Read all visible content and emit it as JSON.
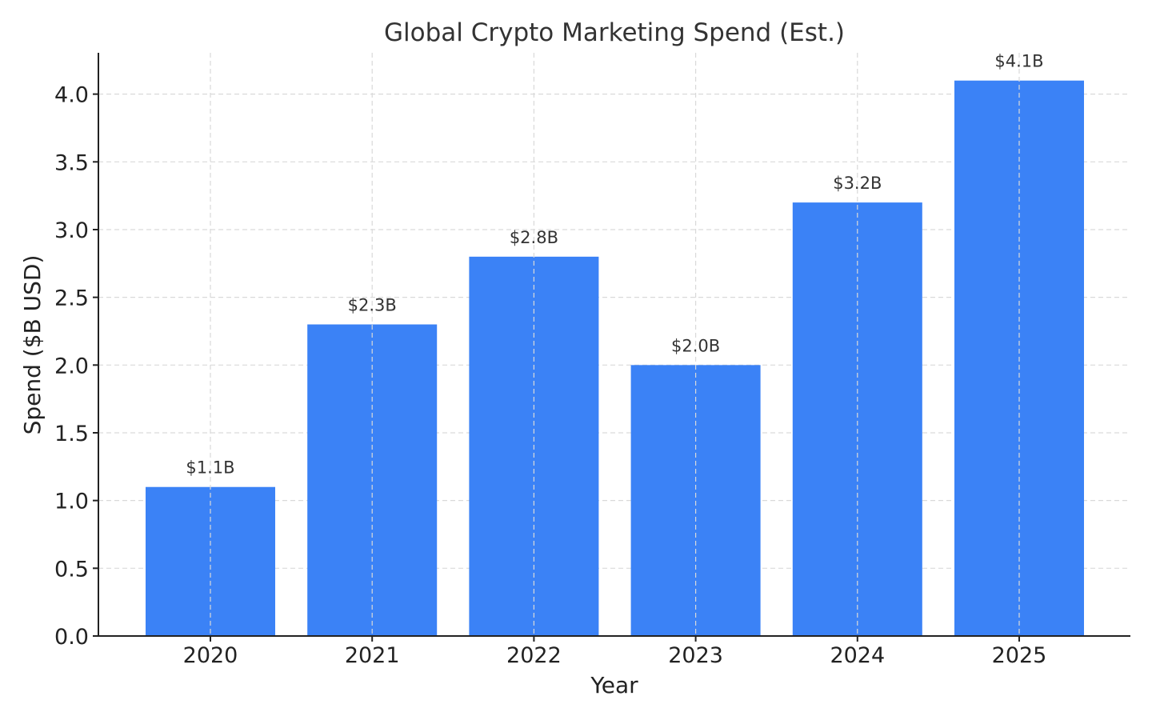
{
  "chart_data": {
    "type": "bar",
    "title": "Global Crypto Marketing Spend (Est.)",
    "xlabel": "Year",
    "ylabel": "Spend ($B USD)",
    "categories": [
      "2020",
      "2021",
      "2022",
      "2023",
      "2024",
      "2025"
    ],
    "values": [
      1.1,
      2.3,
      2.8,
      2.0,
      3.2,
      4.1
    ],
    "data_labels": [
      "$1.1B",
      "$2.3B",
      "$2.8B",
      "$2.0B",
      "$3.2B",
      "$4.1B"
    ],
    "yticks": [
      "0.0",
      "0.5",
      "1.0",
      "1.5",
      "2.0",
      "2.5",
      "3.0",
      "3.5",
      "4.0"
    ],
    "ylim": [
      0,
      4.305
    ],
    "grid": true,
    "bar_color": "#3b82f6"
  }
}
